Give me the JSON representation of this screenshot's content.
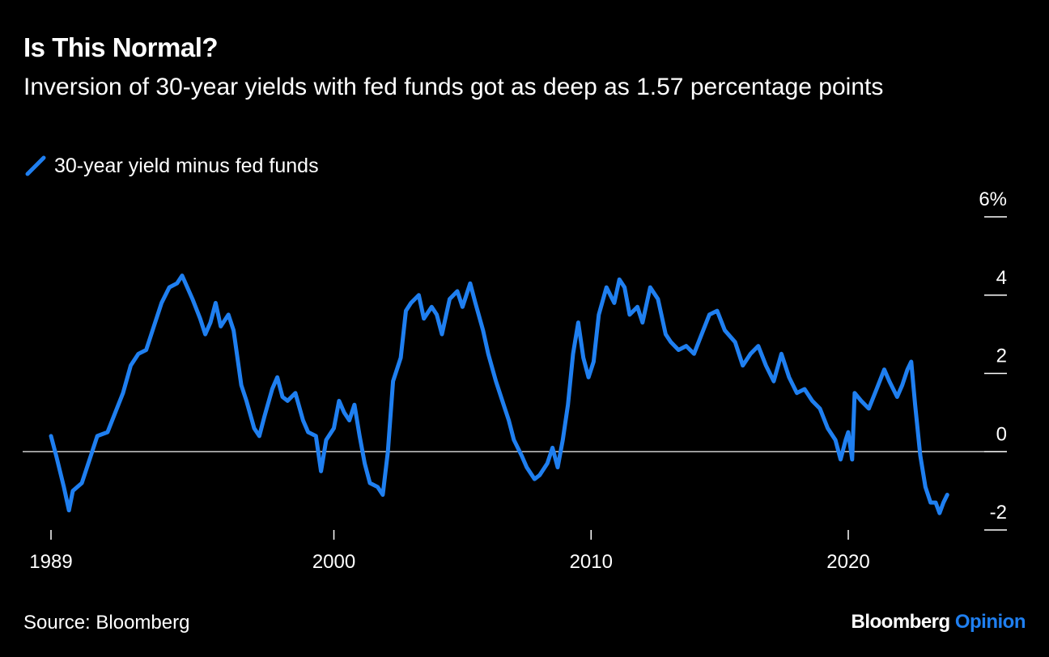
{
  "title": "Is This Normal?",
  "subtitle": "Inversion of 30-year yields with fed funds got as deep as 1.57 percentage points",
  "source": "Source: Bloomberg",
  "brand": {
    "name": "Bloomberg",
    "accent": "Opinion"
  },
  "colors": {
    "background": "#000000",
    "series": "#1F7FF0",
    "text": "#ffffff",
    "zero_line": "#cccccc"
  },
  "chart_data": {
    "type": "line",
    "title": "Is This Normal?",
    "subtitle": "Inversion of 30-year yields with fed funds got as deep as 1.57 percentage points",
    "xlim": [
      1988,
      2026.5
    ],
    "ylim": [
      -2.2,
      6
    ],
    "x_ticks": [
      1989,
      2000,
      2010,
      2020
    ],
    "x_tick_labels": [
      "1989",
      "2000",
      "2010",
      "2020"
    ],
    "y_ticks": [
      6,
      4,
      2,
      0,
      -2
    ],
    "y_tick_labels": [
      "6%",
      "4",
      "2",
      "0",
      "-2"
    ],
    "zero_line": true,
    "grid": false,
    "legend_position": "top-left",
    "series": [
      {
        "name": "30-year yield minus fed funds",
        "color": "#1F7FF0",
        "points": [
          [
            1989.0,
            0.4
          ],
          [
            1989.2,
            -0.1
          ],
          [
            1989.5,
            -0.9
          ],
          [
            1989.7,
            -1.5
          ],
          [
            1989.85,
            -1.0
          ],
          [
            1990.2,
            -0.8
          ],
          [
            1990.5,
            -0.2
          ],
          [
            1990.8,
            0.4
          ],
          [
            1991.2,
            0.5
          ],
          [
            1991.5,
            1.0
          ],
          [
            1991.8,
            1.5
          ],
          [
            1992.1,
            2.2
          ],
          [
            1992.4,
            2.5
          ],
          [
            1992.7,
            2.6
          ],
          [
            1993.0,
            3.2
          ],
          [
            1993.3,
            3.8
          ],
          [
            1993.6,
            4.2
          ],
          [
            1993.9,
            4.3
          ],
          [
            1994.1,
            4.5
          ],
          [
            1994.3,
            4.2
          ],
          [
            1994.5,
            3.9
          ],
          [
            1994.8,
            3.4
          ],
          [
            1995.0,
            3.0
          ],
          [
            1995.2,
            3.3
          ],
          [
            1995.4,
            3.8
          ],
          [
            1995.6,
            3.2
          ],
          [
            1995.9,
            3.5
          ],
          [
            1996.1,
            3.1
          ],
          [
            1996.4,
            1.7
          ],
          [
            1996.6,
            1.3
          ],
          [
            1996.9,
            0.6
          ],
          [
            1997.1,
            0.4
          ],
          [
            1997.3,
            0.9
          ],
          [
            1997.6,
            1.6
          ],
          [
            1997.8,
            1.9
          ],
          [
            1998.0,
            1.4
          ],
          [
            1998.2,
            1.3
          ],
          [
            1998.5,
            1.5
          ],
          [
            1998.8,
            0.8
          ],
          [
            1999.0,
            0.5
          ],
          [
            1999.3,
            0.4
          ],
          [
            1999.5,
            -0.5
          ],
          [
            1999.7,
            0.3
          ],
          [
            2000.0,
            0.6
          ],
          [
            2000.2,
            1.3
          ],
          [
            2000.4,
            1.0
          ],
          [
            2000.6,
            0.8
          ],
          [
            2000.8,
            1.2
          ],
          [
            2001.0,
            0.4
          ],
          [
            2001.2,
            -0.3
          ],
          [
            2001.4,
            -0.8
          ],
          [
            2001.7,
            -0.9
          ],
          [
            2001.9,
            -1.1
          ],
          [
            2002.1,
            0.0
          ],
          [
            2002.3,
            1.8
          ],
          [
            2002.6,
            2.4
          ],
          [
            2002.8,
            3.6
          ],
          [
            2003.0,
            3.8
          ],
          [
            2003.3,
            4.0
          ],
          [
            2003.5,
            3.4
          ],
          [
            2003.8,
            3.7
          ],
          [
            2004.0,
            3.5
          ],
          [
            2004.2,
            3.0
          ],
          [
            2004.5,
            3.9
          ],
          [
            2004.8,
            4.1
          ],
          [
            2005.0,
            3.7
          ],
          [
            2005.3,
            4.3
          ],
          [
            2005.5,
            3.8
          ],
          [
            2005.8,
            3.1
          ],
          [
            2006.0,
            2.5
          ],
          [
            2006.3,
            1.8
          ],
          [
            2006.6,
            1.2
          ],
          [
            2006.8,
            0.8
          ],
          [
            2007.0,
            0.3
          ],
          [
            2007.3,
            -0.1
          ],
          [
            2007.5,
            -0.4
          ],
          [
            2007.8,
            -0.7
          ],
          [
            2008.0,
            -0.6
          ],
          [
            2008.3,
            -0.3
          ],
          [
            2008.5,
            0.1
          ],
          [
            2008.7,
            -0.4
          ],
          [
            2008.9,
            0.3
          ],
          [
            2009.1,
            1.2
          ],
          [
            2009.3,
            2.5
          ],
          [
            2009.5,
            3.3
          ],
          [
            2009.7,
            2.4
          ],
          [
            2009.9,
            1.9
          ],
          [
            2010.1,
            2.3
          ],
          [
            2010.3,
            3.5
          ],
          [
            2010.6,
            4.2
          ],
          [
            2010.9,
            3.8
          ],
          [
            2011.1,
            4.4
          ],
          [
            2011.3,
            4.2
          ],
          [
            2011.5,
            3.5
          ],
          [
            2011.8,
            3.7
          ],
          [
            2012.0,
            3.3
          ],
          [
            2012.3,
            4.2
          ],
          [
            2012.6,
            3.9
          ],
          [
            2012.9,
            3.0
          ],
          [
            2013.1,
            2.8
          ],
          [
            2013.4,
            2.6
          ],
          [
            2013.7,
            2.7
          ],
          [
            2014.0,
            2.5
          ],
          [
            2014.3,
            3.0
          ],
          [
            2014.6,
            3.5
          ],
          [
            2014.9,
            3.6
          ],
          [
            2015.2,
            3.1
          ],
          [
            2015.6,
            2.8
          ],
          [
            2015.9,
            2.2
          ],
          [
            2016.2,
            2.5
          ],
          [
            2016.5,
            2.7
          ],
          [
            2016.8,
            2.2
          ],
          [
            2017.1,
            1.8
          ],
          [
            2017.4,
            2.5
          ],
          [
            2017.7,
            1.9
          ],
          [
            2018.0,
            1.5
          ],
          [
            2018.3,
            1.6
          ],
          [
            2018.6,
            1.3
          ],
          [
            2018.9,
            1.1
          ],
          [
            2019.2,
            0.6
          ],
          [
            2019.5,
            0.3
          ],
          [
            2019.7,
            -0.2
          ],
          [
            2019.9,
            0.3
          ],
          [
            2020.0,
            0.5
          ],
          [
            2020.15,
            -0.2
          ],
          [
            2020.25,
            1.5
          ],
          [
            2020.5,
            1.3
          ],
          [
            2020.8,
            1.1
          ],
          [
            2021.1,
            1.6
          ],
          [
            2021.4,
            2.1
          ],
          [
            2021.6,
            1.8
          ],
          [
            2021.9,
            1.4
          ],
          [
            2022.1,
            1.7
          ],
          [
            2022.3,
            2.1
          ],
          [
            2022.45,
            2.3
          ],
          [
            2022.6,
            1.2
          ],
          [
            2022.8,
            -0.1
          ],
          [
            2023.0,
            -0.9
          ],
          [
            2023.2,
            -1.3
          ],
          [
            2023.4,
            -1.3
          ],
          [
            2023.55,
            -1.57
          ],
          [
            2023.7,
            -1.3
          ],
          [
            2023.85,
            -1.1
          ]
        ]
      }
    ]
  }
}
